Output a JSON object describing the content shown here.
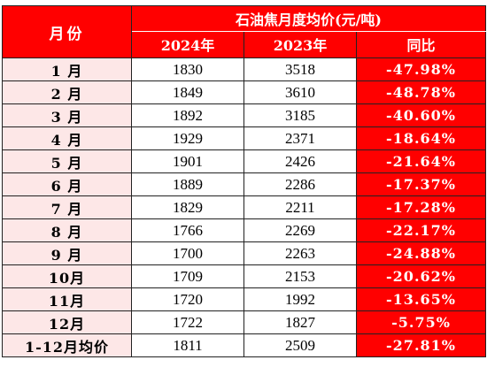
{
  "table": {
    "header": {
      "month_label": "月份",
      "group_title": "石油焦月度均价(元/吨)",
      "col_2024": "2024年",
      "col_2023": "2023年",
      "col_yoy": "同比"
    },
    "rows": [
      {
        "month": "1 月",
        "y2024": "1830",
        "y2023": "3518",
        "yoy": "-47.98%"
      },
      {
        "month": "2 月",
        "y2024": "1849",
        "y2023": "3610",
        "yoy": "-48.78%"
      },
      {
        "month": "3 月",
        "y2024": "1892",
        "y2023": "3185",
        "yoy": "-40.60%"
      },
      {
        "month": "4 月",
        "y2024": "1929",
        "y2023": "2371",
        "yoy": "-18.64%"
      },
      {
        "month": "5 月",
        "y2024": "1901",
        "y2023": "2426",
        "yoy": "-21.64%"
      },
      {
        "month": "6 月",
        "y2024": "1889",
        "y2023": "2286",
        "yoy": "-17.37%"
      },
      {
        "month": "7 月",
        "y2024": "1829",
        "y2023": "2211",
        "yoy": "-17.28%"
      },
      {
        "month": "8 月",
        "y2024": "1766",
        "y2023": "2269",
        "yoy": "-22.17%"
      },
      {
        "month": "9 月",
        "y2024": "1700",
        "y2023": "2263",
        "yoy": "-24.88%"
      },
      {
        "month": "10月",
        "y2024": "1709",
        "y2023": "2153",
        "yoy": "-20.62%"
      },
      {
        "month": "11月",
        "y2024": "1720",
        "y2023": "1992",
        "yoy": "-13.65%"
      },
      {
        "month": "12月",
        "y2024": "1722",
        "y2023": "1827",
        "yoy": "-5.75%"
      },
      {
        "month": "1-12月均价",
        "y2024": "1811",
        "y2023": "2509",
        "yoy": "-27.81%"
      }
    ]
  },
  "colors": {
    "header_red": "#ff0000",
    "month_cell_pink": "#fde7e7",
    "yoy_red": "#ff0000",
    "text_white": "#ffffff",
    "text_black": "#000000"
  }
}
